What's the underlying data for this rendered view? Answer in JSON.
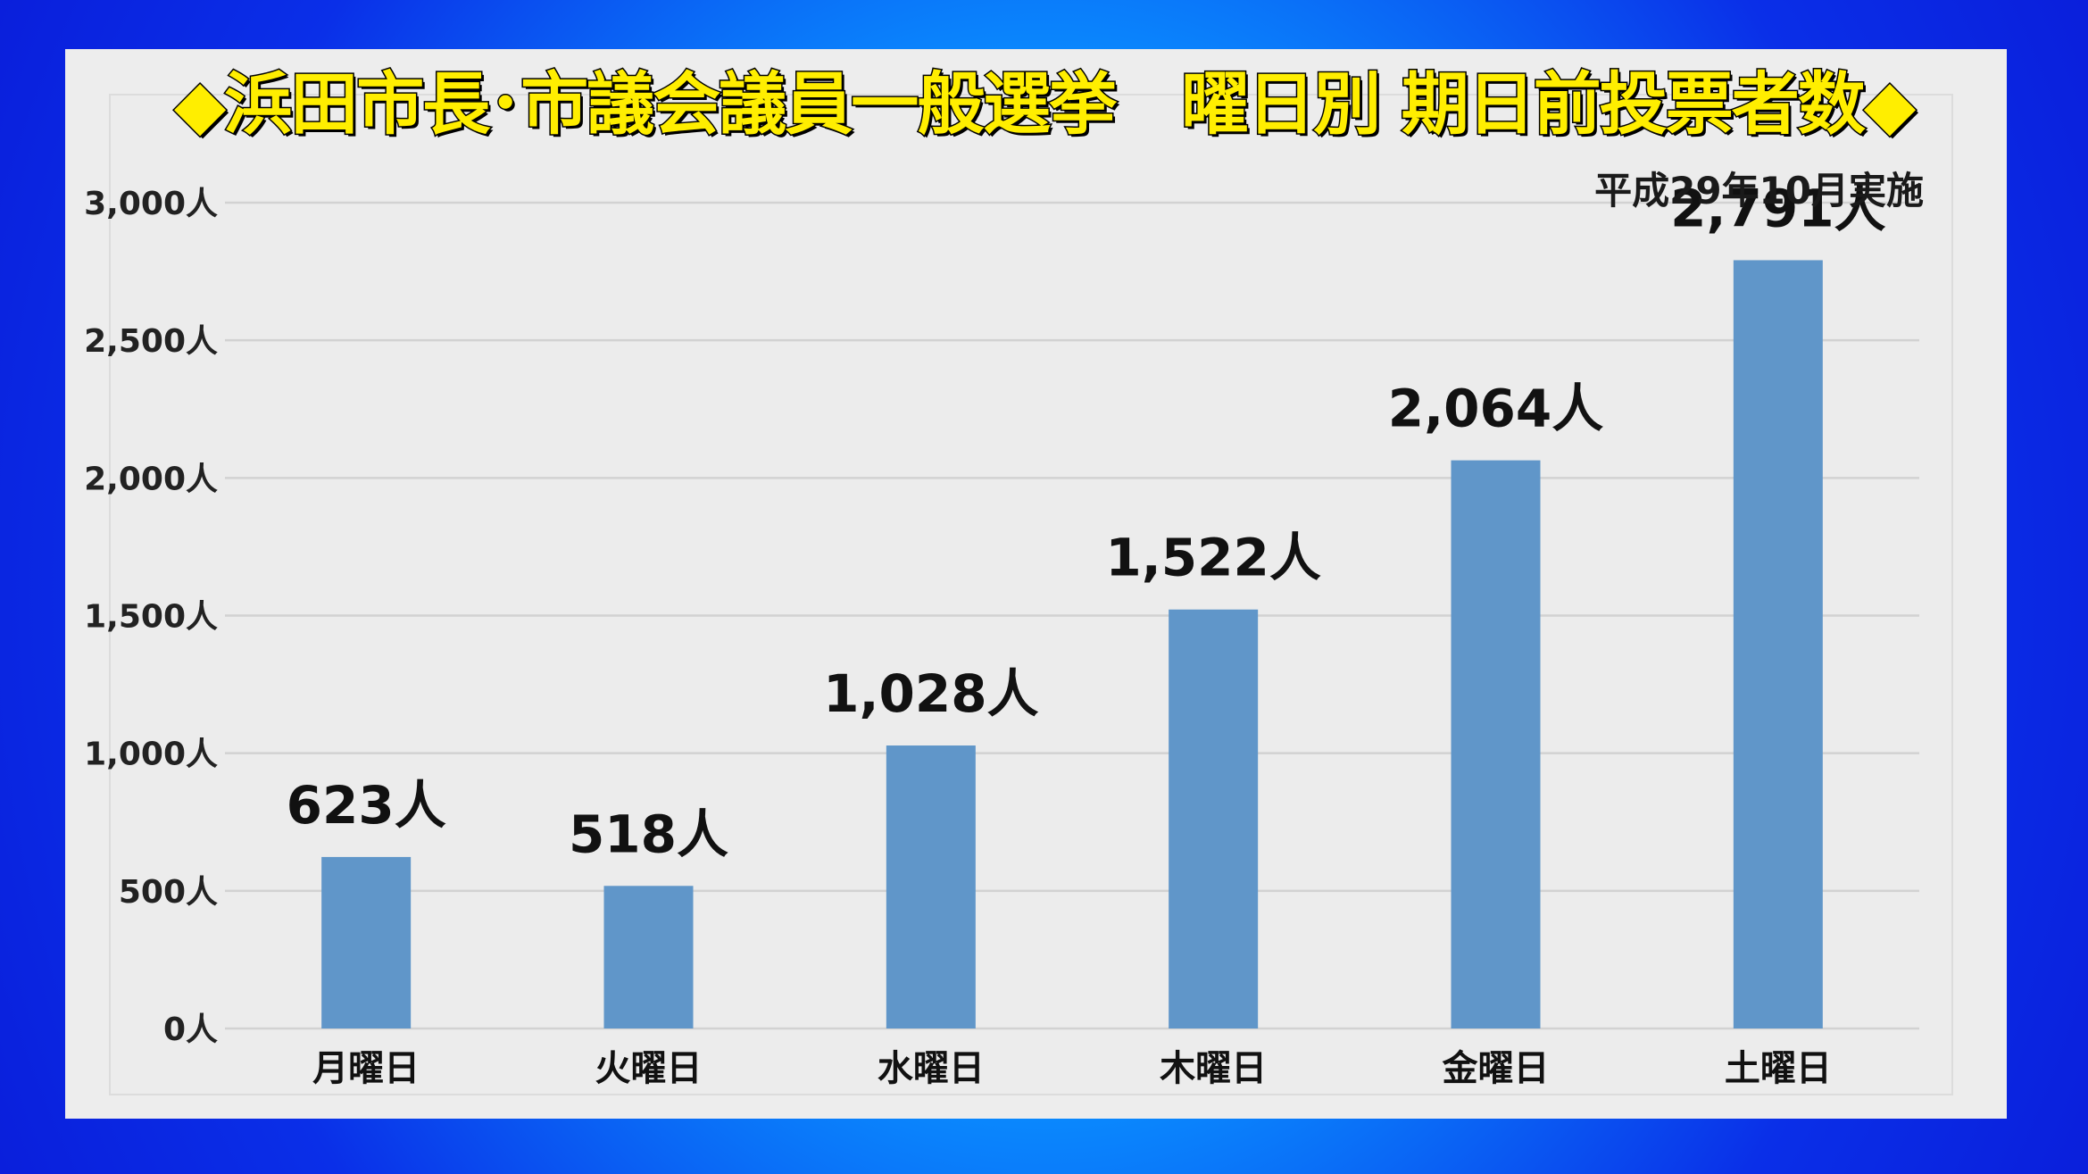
{
  "chart_data": {
    "type": "bar",
    "title": "◆浜田市長･市議会議員一般選挙　曜日別 期日前投票者数◆",
    "subtitle": "平成29年10月実施",
    "categories": [
      "月曜日",
      "火曜日",
      "水曜日",
      "木曜日",
      "金曜日",
      "土曜日"
    ],
    "values": [
      623,
      518,
      1028,
      1522,
      2064,
      2791
    ],
    "data_labels": [
      "623人",
      "518人",
      "1,028人",
      "1,522人",
      "2,064人",
      "2,791人"
    ],
    "ylim": [
      0,
      3000
    ],
    "yticks": [
      0,
      500,
      1000,
      1500,
      2000,
      2500,
      3000
    ],
    "ytick_labels": [
      "0人",
      "500人",
      "1,000人",
      "1,500人",
      "2,000人",
      "2,500人",
      "3,000人"
    ],
    "xlabel": "",
    "ylabel": "",
    "grid": true,
    "legend": "none",
    "colors": {
      "bar": "#6096c9",
      "grid": "#d2d2d2",
      "title_fill": "#ffee00",
      "title_stroke": "#000000"
    }
  }
}
